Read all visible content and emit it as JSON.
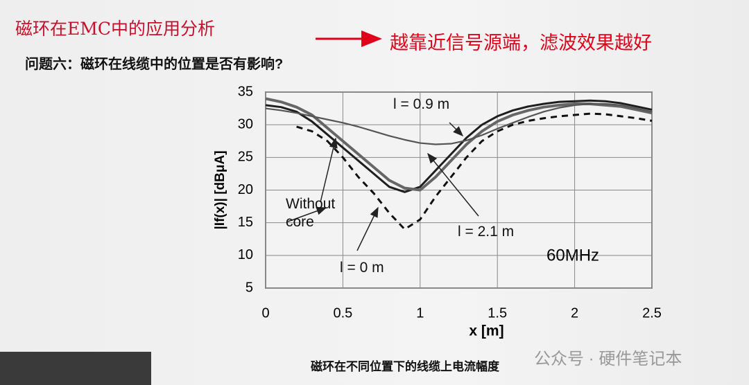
{
  "slide": {
    "title": "磁环在EMC中的应用分析",
    "note": "越靠近信号源端，滤波效果越好",
    "question": "问题六：磁环在线缆中的位置是否有影响?",
    "caption": "磁环在不同位置下的线缆上电流幅度",
    "watermark": "公众号 · 硬件笔记本"
  },
  "chart_data": {
    "type": "line",
    "x_label": "x [m]",
    "y_label": "|If(x)| [dBμA]",
    "annotation": "60MHz",
    "x": [
      0,
      0.1,
      0.2,
      0.3,
      0.4,
      0.5,
      0.6,
      0.7,
      0.8,
      0.9,
      1.0,
      1.1,
      1.2,
      1.3,
      1.4,
      1.5,
      1.6,
      1.7,
      1.8,
      1.9,
      2.0,
      2.1,
      2.2,
      2.3,
      2.4,
      2.5
    ],
    "series": [
      {
        "name": "Without core",
        "color": "#1e1e1e",
        "values": [
          33,
          32.7,
          32,
          30.5,
          28.5,
          26.5,
          24.5,
          22.5,
          20.5,
          19.7,
          20.5,
          23,
          25.5,
          28,
          30,
          31.3,
          32.2,
          32.8,
          33.2,
          33.5,
          33.6,
          33.7,
          33.6,
          33.3,
          32.8,
          32.3
        ]
      },
      {
        "name": "l = 2.1 m",
        "color": "#666666",
        "values": [
          34,
          33.5,
          32.7,
          31.5,
          29.5,
          27.5,
          25.5,
          23.5,
          21.5,
          20.3,
          20,
          22,
          24.5,
          27,
          29,
          30.5,
          31.5,
          32.2,
          32.7,
          33,
          33.2,
          33.2,
          33,
          32.8,
          32.3,
          31.8
        ]
      },
      {
        "name": "l = 0.9 m",
        "color": "#555555",
        "values": [
          32.5,
          32.2,
          31.8,
          31.3,
          30.8,
          30.3,
          29.7,
          29,
          28.3,
          27.7,
          27.2,
          27,
          27.1,
          27.6,
          28.4,
          29.4,
          30.3,
          31.2,
          32,
          32.6,
          33,
          33.2,
          33.2,
          33,
          32.5,
          32
        ]
      },
      {
        "name": "l = 0 m",
        "color": "#111111",
        "dashed": true,
        "values": [
          null,
          null,
          29.7,
          29,
          27.5,
          25,
          22,
          19.5,
          16.5,
          14,
          15.5,
          19,
          22,
          25,
          27.5,
          29,
          30,
          30.6,
          31,
          31.3,
          31.5,
          31.7,
          31.6,
          31.3,
          31,
          30.6
        ]
      }
    ],
    "xlim": [
      0,
      2.5
    ],
    "xticks": [
      0,
      0.5,
      1,
      1.5,
      2,
      2.5
    ],
    "ylim": [
      5,
      35
    ],
    "yticks": [
      5,
      10,
      15,
      20,
      25,
      30,
      35
    ],
    "grid": true
  }
}
